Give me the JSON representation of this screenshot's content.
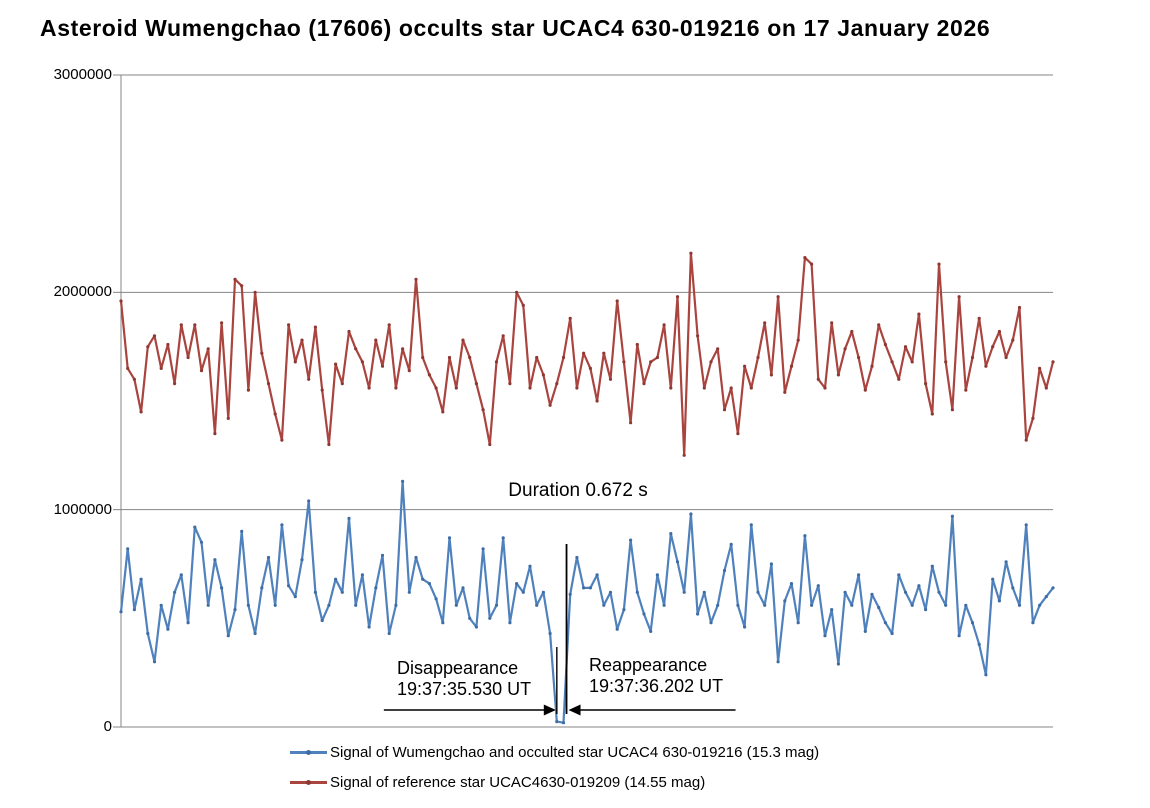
{
  "chart_data": {
    "type": "line",
    "title": "Asteroid Wumengchao (17606) occults star UCAC4 630-019216 on 17 January 2026",
    "xlabel": "",
    "ylabel": "",
    "ylim": [
      0,
      3000000
    ],
    "y_tick_values": [
      3000000,
      2000000,
      1000000,
      0
    ],
    "y_tick_labels": [
      "3000000",
      "2000000",
      "1000000",
      "0"
    ],
    "grid": "horizontal",
    "gridline_color": "#848484",
    "legend_position": "bottom",
    "annotations": {
      "duration": "Duration 0.672 s",
      "disappearance_label": "Disappearance",
      "disappearance_time": "19:37:35.530 UT",
      "reappearance_label": "Reappearance",
      "reappearance_time": "19:37:36.202 UT"
    },
    "series": [
      {
        "name": "Signal of Wumengchao and occulted star UCAC4 630-019216 (15.3 mag)",
        "color": "#4F81BD",
        "marker_color": "#3E6DA5",
        "values": [
          530000,
          820000,
          540000,
          680000,
          430000,
          300000,
          560000,
          450000,
          620000,
          700000,
          480000,
          920000,
          850000,
          560000,
          770000,
          640000,
          420000,
          540000,
          900000,
          560000,
          430000,
          640000,
          780000,
          560000,
          930000,
          650000,
          600000,
          770000,
          1040000,
          620000,
          490000,
          560000,
          680000,
          620000,
          960000,
          560000,
          700000,
          460000,
          640000,
          790000,
          430000,
          560000,
          1130000,
          620000,
          780000,
          680000,
          660000,
          590000,
          480000,
          870000,
          560000,
          640000,
          500000,
          460000,
          820000,
          500000,
          560000,
          870000,
          480000,
          660000,
          620000,
          740000,
          560000,
          620000,
          430000,
          25000,
          20000,
          610000,
          780000,
          640000,
          640000,
          700000,
          560000,
          620000,
          450000,
          540000,
          860000,
          620000,
          520000,
          440000,
          700000,
          560000,
          890000,
          760000,
          620000,
          980000,
          520000,
          620000,
          480000,
          560000,
          720000,
          840000,
          560000,
          460000,
          930000,
          620000,
          560000,
          750000,
          300000,
          580000,
          660000,
          480000,
          880000,
          560000,
          650000,
          420000,
          540000,
          290000,
          620000,
          560000,
          700000,
          440000,
          610000,
          550000,
          480000,
          430000,
          700000,
          620000,
          560000,
          650000,
          540000,
          740000,
          620000,
          560000,
          970000,
          420000,
          560000,
          480000,
          380000,
          240000,
          680000,
          580000,
          760000,
          640000,
          560000,
          930000,
          480000,
          560000,
          600000,
          640000
        ]
      },
      {
        "name": "Signal of reference star UCAC4630-019209 (14.55 mag)",
        "color": "#A9443F",
        "marker_color": "#8F3833",
        "values": [
          1960000,
          1650000,
          1600000,
          1450000,
          1750000,
          1800000,
          1650000,
          1760000,
          1580000,
          1850000,
          1700000,
          1850000,
          1640000,
          1740000,
          1350000,
          1860000,
          1420000,
          2060000,
          2030000,
          1550000,
          2000000,
          1720000,
          1580000,
          1440000,
          1320000,
          1850000,
          1680000,
          1780000,
          1600000,
          1840000,
          1550000,
          1300000,
          1670000,
          1580000,
          1820000,
          1740000,
          1680000,
          1560000,
          1780000,
          1660000,
          1850000,
          1560000,
          1740000,
          1640000,
          2060000,
          1700000,
          1620000,
          1560000,
          1450000,
          1700000,
          1560000,
          1780000,
          1700000,
          1580000,
          1460000,
          1300000,
          1680000,
          1800000,
          1580000,
          2000000,
          1940000,
          1560000,
          1700000,
          1620000,
          1480000,
          1580000,
          1700000,
          1880000,
          1560000,
          1720000,
          1650000,
          1500000,
          1720000,
          1600000,
          1960000,
          1680000,
          1400000,
          1760000,
          1580000,
          1680000,
          1700000,
          1850000,
          1560000,
          1980000,
          1250000,
          2180000,
          1800000,
          1560000,
          1680000,
          1740000,
          1460000,
          1560000,
          1350000,
          1660000,
          1560000,
          1700000,
          1860000,
          1620000,
          1980000,
          1540000,
          1660000,
          1780000,
          2160000,
          2130000,
          1600000,
          1560000,
          1860000,
          1620000,
          1740000,
          1820000,
          1700000,
          1550000,
          1660000,
          1850000,
          1760000,
          1680000,
          1600000,
          1750000,
          1680000,
          1900000,
          1580000,
          1440000,
          2130000,
          1680000,
          1460000,
          1980000,
          1550000,
          1700000,
          1880000,
          1660000,
          1750000,
          1820000,
          1700000,
          1780000,
          1930000,
          1320000,
          1420000,
          1650000,
          1560000,
          1680000
        ]
      }
    ]
  }
}
